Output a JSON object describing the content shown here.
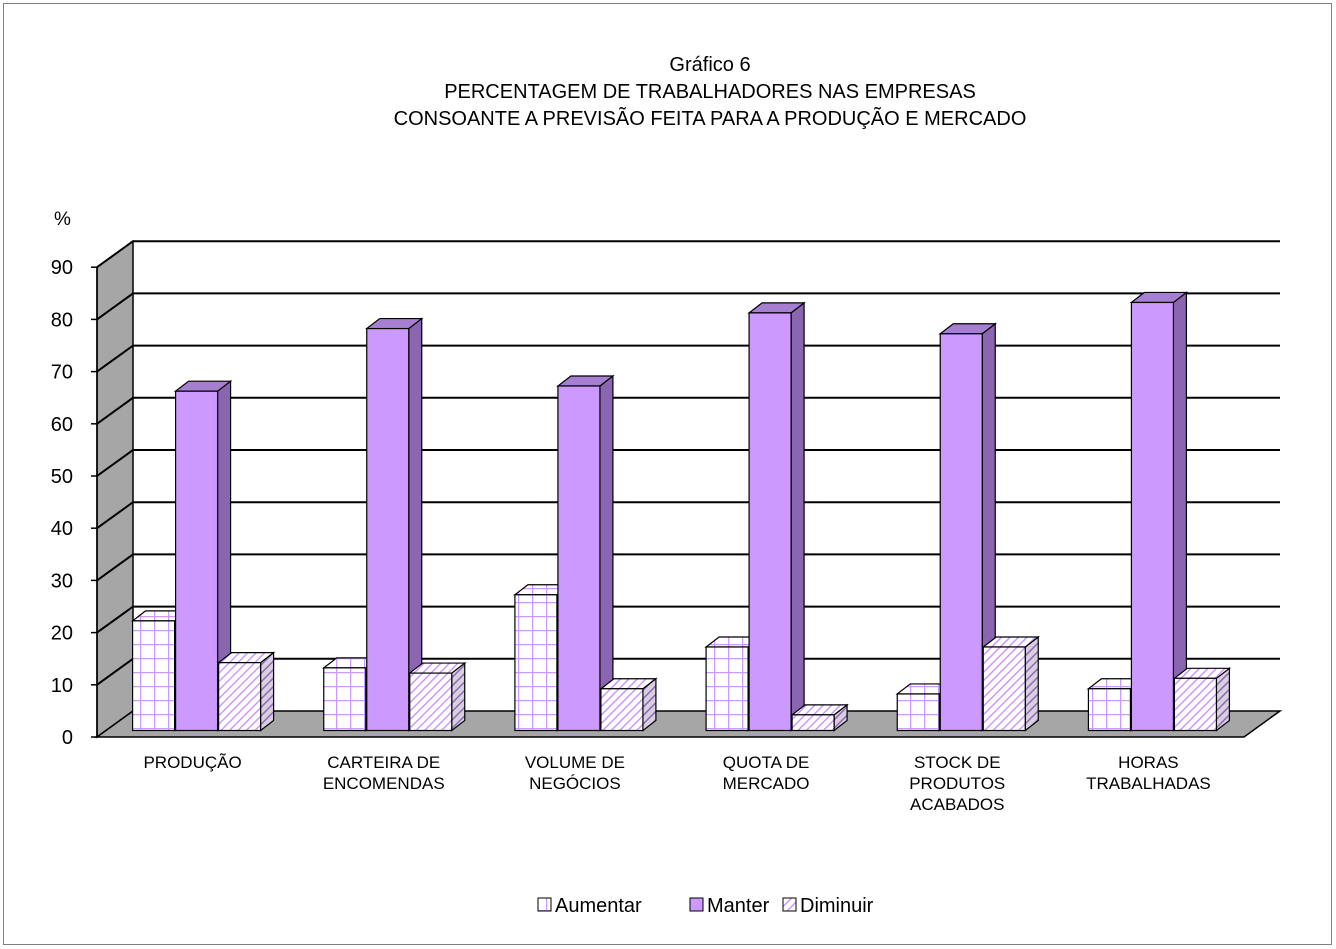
{
  "chart_data": {
    "type": "bar",
    "title_lines": [
      "Gráfico 6",
      "PERCENTAGEM DE TRABALHADORES NAS EMPRESAS",
      "CONSOANTE A PREVISÃO FEITA PARA A PRODUÇÃO E MERCADO"
    ],
    "ylabel": "%",
    "ylim": [
      0,
      90
    ],
    "yticks": [
      "0",
      "10",
      "20",
      "30",
      "40",
      "50",
      "60",
      "70",
      "80",
      "90"
    ],
    "grid": true,
    "legend_position": "bottom",
    "categories": [
      [
        "PRODUÇÃO"
      ],
      [
        "CARTEIRA DE",
        "ENCOMENDAS"
      ],
      [
        "VOLUME DE",
        "NEGÓCIOS"
      ],
      [
        "QUOTA DE",
        "MERCADO"
      ],
      [
        "STOCK DE",
        "PRODUTOS",
        "ACABADOS"
      ],
      [
        "HORAS",
        "TRABALHADAS"
      ]
    ],
    "series": [
      {
        "name": "Aumentar",
        "values": [
          21,
          12,
          26,
          16,
          7,
          8
        ],
        "color": "#ffffff",
        "pattern": "grid",
        "pattern_color": "#cc99ff"
      },
      {
        "name": "Manter",
        "values": [
          65,
          77,
          66,
          80,
          76,
          82
        ],
        "color": "#cc99ff",
        "pattern": "solid"
      },
      {
        "name": "Diminuir",
        "values": [
          13,
          11,
          8,
          3,
          16,
          10
        ],
        "color": "#ffffff",
        "pattern": "diagonal",
        "pattern_color": "#cc99ff"
      }
    ]
  }
}
